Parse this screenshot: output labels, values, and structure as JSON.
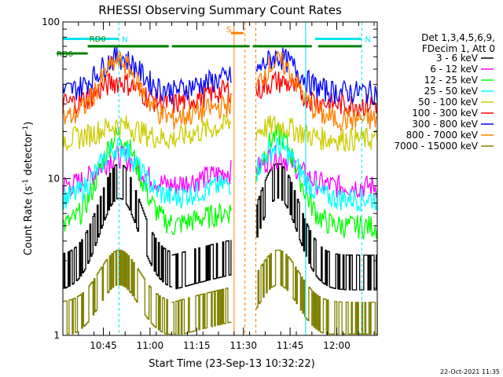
{
  "chart_data": {
    "type": "line",
    "title": "RHESSI Observing Summary Count Rates",
    "xlabel": "Start Time (23-Sep-13 10:32:22)",
    "ylabel_main": "Count Rate (s",
    "ylabel_sup": "-1",
    "ylabel_rest": " detector",
    "ylabel_sup2": "-1",
    "ylabel_end": ")",
    "yscale": "log",
    "ylim": [
      1,
      100
    ],
    "yticks": [
      {
        "value": 1,
        "label": "1"
      },
      {
        "value": 10,
        "label": "10"
      },
      {
        "value": 100,
        "label": "100"
      }
    ],
    "xlim_min": [
      0,
      101
    ],
    "xticks": [
      {
        "min": 13,
        "label": "10:45"
      },
      {
        "min": 28,
        "label": "11:00"
      },
      {
        "min": 43,
        "label": "11:15"
      },
      {
        "min": 58,
        "label": "11:30"
      },
      {
        "min": 73,
        "label": "11:45"
      },
      {
        "min": 88,
        "label": "12:00"
      }
    ],
    "legend": {
      "placement": "right",
      "header": [
        "Det 1,3,4,5,6,9,",
        "FDecim 1, Att 0"
      ],
      "entries": [
        {
          "label": "3 - 6 keV",
          "color": "#000000"
        },
        {
          "label": "6 - 12 keV",
          "color": "#ff00ff"
        },
        {
          "label": "12 - 25 keV",
          "color": "#00ff00"
        },
        {
          "label": "25 - 50 keV",
          "color": "#00ffff"
        },
        {
          "label": "50 - 100 keV",
          "color": "#cccc00"
        },
        {
          "label": "100 - 300 keV",
          "color": "#ff0000"
        },
        {
          "label": "300 - 800 keV",
          "color": "#0000ff"
        },
        {
          "label": "800 - 7000 keV",
          "color": "#ff8000"
        },
        {
          "label": "7000 - 15000 keV",
          "color": "#808000"
        }
      ]
    },
    "annotations": [
      {
        "label": "N",
        "color": "#00e5ee",
        "from": 0,
        "to": 18,
        "level": 78
      },
      {
        "label": "N",
        "color": "#00e5ee",
        "from": 81,
        "to": 96,
        "level": 78
      },
      {
        "label": "RD0",
        "color": "#008000",
        "from": 8,
        "to": 34,
        "level": 70
      },
      {
        "label": "RD6",
        "color": "#008000",
        "from": -2,
        "to": 8,
        "level": 63
      },
      {
        "label": "S",
        "color": "#ff8000",
        "from": 54,
        "to": 58,
        "level": 85
      }
    ],
    "segment_bars": [
      {
        "color": "#008000",
        "from": 8,
        "to": 34,
        "level": 70
      },
      {
        "color": "#008000",
        "from": 35,
        "to": 60,
        "level": 70
      },
      {
        "color": "#008000",
        "from": 61,
        "to": 80,
        "level": 70
      },
      {
        "color": "#008000",
        "from": 82,
        "to": 96,
        "level": 70
      }
    ],
    "vlines": [
      {
        "min": 0,
        "color": "#00e5ee",
        "style": "solid"
      },
      {
        "min": 18,
        "color": "#00e5ee",
        "style": "dashed"
      },
      {
        "min": 55,
        "color": "#ff8000",
        "style": "solid"
      },
      {
        "min": 58.5,
        "color": "#ff8000",
        "style": "dashed"
      },
      {
        "min": 62,
        "color": "#ff8000",
        "style": "dashed"
      },
      {
        "min": 78,
        "color": "#00e5ee",
        "style": "solid"
      },
      {
        "min": 96,
        "color": "#00e5ee",
        "style": "dashed"
      }
    ],
    "orbit_segments": [
      {
        "start": 0,
        "end": 35,
        "peak": 18
      },
      {
        "start": 35,
        "end": 54
      },
      {
        "start": 62,
        "end": 101,
        "peak": 69
      }
    ],
    "series": [
      {
        "name": "3 - 6 keV",
        "color": "#000000",
        "base": 2.6,
        "peak": 10
      },
      {
        "name": "6 - 12 keV",
        "color": "#ff00ff",
        "base": 9,
        "peak": 14
      },
      {
        "name": "12 - 25 keV",
        "color": "#00ff00",
        "base": 5,
        "peak": 19
      },
      {
        "name": "25 - 50 keV",
        "color": "#00ffff",
        "base": 7.5,
        "peak": 16
      },
      {
        "name": "50 - 100 keV",
        "color": "#cccc00",
        "base": 18,
        "peak": 22
      },
      {
        "name": "100 - 300 keV",
        "color": "#ff0000",
        "base": 30,
        "peak": 42
      },
      {
        "name": "300 - 800 keV",
        "color": "#0000ff",
        "base": 36,
        "peak": 60
      },
      {
        "name": "800 - 7000 keV",
        "color": "#ff8000",
        "base": 24,
        "peak": 56
      },
      {
        "name": "7000 - 15000 keV",
        "color": "#808000",
        "base": 1.3,
        "peak": 2.8
      }
    ],
    "grid": false
  },
  "footer": {
    "timestamp": "22-Oct-2021 11:35"
  }
}
